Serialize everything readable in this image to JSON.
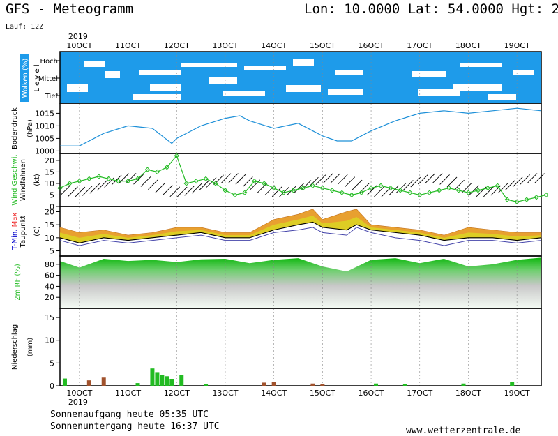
{
  "header": {
    "title": "GFS - Meteogramm",
    "location": "Lon: 10.0000 Lat: 54.0000 Hgt: 2",
    "run": "Lauf: 12Z"
  },
  "footer": {
    "sunrise": "Sonnenaufgang heute 05:35 UTC",
    "sunset": "Sonnenuntergang heute 16:37 UTC",
    "website": "www.wetterzentrale.de"
  },
  "colors": {
    "cloud": "#1e9bea",
    "pressure": "#1e90d8",
    "wind_marker": "#22bb22",
    "tmin": "#0000cc",
    "tmax": "#ee2222",
    "temp_fill": "#e8a030",
    "humidity": "#22bb22",
    "precip_green": "#22bb22",
    "precip_brown": "#a0522d"
  },
  "chart_data": [
    {
      "type": "heatmap",
      "name_label": "Wolken (%)",
      "axis_label": "L e v e l",
      "levels": [
        "Hoch",
        "Mittel",
        "Tief"
      ],
      "x": [
        "10OCT",
        "11OCT",
        "12OCT",
        "13OCT",
        "14OCT",
        "15OCT",
        "16OCT",
        "17OCT",
        "18OCT",
        "19OCT"
      ],
      "year": "2019"
    },
    {
      "type": "line",
      "ylabel": "Bodendruck",
      "unit": "(hPa)",
      "yticks": [
        1000,
        1005,
        1010,
        1015
      ],
      "ylim": [
        999,
        1019
      ],
      "x_days": [
        9.6,
        10.0,
        10.5,
        11.0,
        11.5,
        11.9,
        12.0,
        12.5,
        13.0,
        13.3,
        13.5,
        14.0,
        14.5,
        15.0,
        15.3,
        15.6,
        16.0,
        16.5,
        17.0,
        17.5,
        18.0,
        18.5,
        19.0,
        19.5
      ],
      "values": [
        1002,
        1002,
        1007,
        1010,
        1009,
        1003,
        1005,
        1010,
        1013,
        1014,
        1012,
        1009,
        1011,
        1006,
        1004,
        1004,
        1008,
        1012,
        1015,
        1016,
        1015,
        1016,
        1017,
        1016
      ]
    },
    {
      "type": "line",
      "ylabel": "Wind Geschwi.",
      "ylabel2": "Windfahnen",
      "unit": "(kt)",
      "yticks": [
        0,
        5,
        10,
        15,
        20
      ],
      "ylim": [
        0,
        23
      ],
      "x_days": [
        9.6,
        9.8,
        10.0,
        10.2,
        10.4,
        10.6,
        10.8,
        11.0,
        11.2,
        11.4,
        11.6,
        11.8,
        12.0,
        12.2,
        12.4,
        12.6,
        12.8,
        13.0,
        13.2,
        13.4,
        13.6,
        13.8,
        14.0,
        14.2,
        14.4,
        14.6,
        14.8,
        15.0,
        15.2,
        15.4,
        15.6,
        15.8,
        16.0,
        16.2,
        16.4,
        16.6,
        16.8,
        17.0,
        17.2,
        17.4,
        17.6,
        17.8,
        18.0,
        18.2,
        18.4,
        18.6,
        18.8,
        19.0,
        19.2,
        19.4,
        19.6
      ],
      "values": [
        8,
        10,
        11,
        12,
        13,
        12,
        11,
        11,
        12,
        16,
        15,
        17,
        22,
        10,
        11,
        12,
        10,
        7,
        5,
        6,
        11,
        10,
        8,
        6,
        7,
        8,
        9,
        8,
        7,
        6,
        5,
        6,
        8,
        9,
        8,
        7,
        6,
        5,
        6,
        7,
        8,
        7,
        6,
        7,
        8,
        9,
        3,
        2,
        3,
        4,
        5
      ]
    },
    {
      "type": "area",
      "ylabel": "T-Min, Max",
      "ylabel2": "Taupunkt",
      "unit": "(C)",
      "yticks": [
        5,
        10,
        15,
        20
      ],
      "ylim": [
        3,
        22
      ],
      "x_days": [
        9.6,
        10.0,
        10.5,
        11.0,
        11.5,
        12.0,
        12.5,
        13.0,
        13.5,
        14.0,
        14.5,
        14.8,
        15.0,
        15.5,
        15.7,
        16.0,
        16.5,
        17.0,
        17.5,
        18.0,
        18.5,
        19.0,
        19.5
      ],
      "max": [
        14,
        12,
        13,
        11,
        12,
        14,
        14,
        12,
        12,
        17,
        19,
        21,
        17,
        20,
        21,
        15,
        14,
        13,
        11,
        14,
        13,
        12,
        12
      ],
      "min": [
        10,
        8,
        10,
        9,
        10,
        11,
        12,
        10,
        10,
        13,
        15,
        16,
        14,
        13,
        15,
        13,
        12,
        11,
        9,
        10,
        10,
        9,
        10
      ],
      "dewpoint": [
        9,
        7,
        9,
        8,
        9,
        10,
        11,
        9,
        9,
        12,
        13,
        14,
        12,
        11,
        14,
        12,
        10,
        9,
        7,
        9,
        9,
        8,
        9
      ]
    },
    {
      "type": "area",
      "ylabel": "2m RF (%)",
      "yticks": [
        20,
        40,
        60,
        80
      ],
      "ylim": [
        0,
        95
      ],
      "x_days": [
        9.6,
        10.0,
        10.5,
        11.0,
        11.5,
        12.0,
        12.5,
        13.0,
        13.5,
        14.0,
        14.5,
        15.0,
        15.5,
        16.0,
        16.5,
        17.0,
        17.5,
        18.0,
        18.5,
        19.0,
        19.5
      ],
      "values": [
        86,
        74,
        90,
        86,
        88,
        84,
        89,
        90,
        82,
        88,
        91,
        76,
        67,
        88,
        91,
        82,
        90,
        76,
        80,
        88,
        92
      ]
    },
    {
      "type": "bar",
      "ylabel": "Niederschlag",
      "unit": "(mm)",
      "yticks": [
        0,
        5,
        10,
        15
      ],
      "ylim": [
        0,
        17
      ],
      "x_days": [
        9.7,
        10.2,
        10.5,
        11.2,
        11.5,
        11.6,
        11.7,
        11.8,
        11.9,
        12.1,
        12.6,
        13.8,
        14.0,
        14.8,
        15.0,
        16.1,
        16.7,
        17.9,
        18.9
      ],
      "values": [
        1.6,
        1.2,
        1.8,
        0.6,
        3.8,
        3.0,
        2.4,
        2.1,
        1.5,
        2.4,
        0.4,
        0.7,
        0.8,
        0.5,
        0.4,
        0.5,
        0.4,
        0.5,
        0.9
      ],
      "kinds": [
        "g",
        "b",
        "b",
        "g",
        "g",
        "g",
        "g",
        "g",
        "g",
        "g",
        "g",
        "b",
        "b",
        "b",
        "b",
        "g",
        "g",
        "g",
        "g"
      ]
    }
  ]
}
